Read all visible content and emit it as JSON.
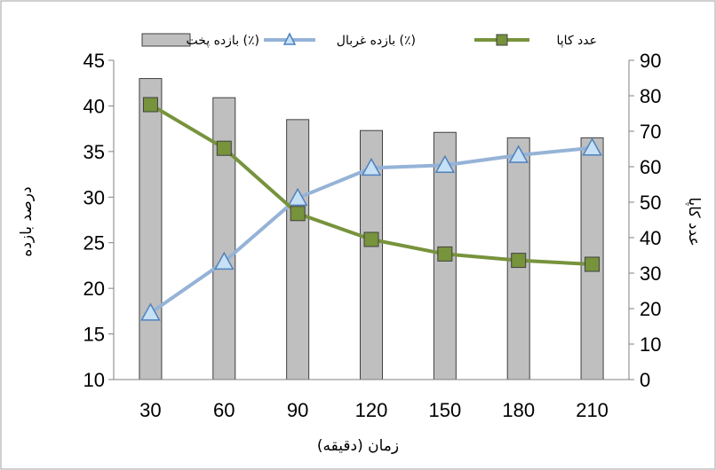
{
  "chart_data": {
    "type": "bar",
    "title": "",
    "xlabel": "زمان (دقیقه)",
    "ylabel_left": "درصد بازده",
    "ylabel_right": "عدد کاپا",
    "categories": [
      "30",
      "60",
      "90",
      "120",
      "150",
      "180",
      "210"
    ],
    "ylim_left": [
      10,
      45
    ],
    "yticks_left": [
      "10",
      "15",
      "20",
      "25",
      "30",
      "35",
      "40",
      "45"
    ],
    "ylim_right": [
      0,
      90
    ],
    "yticks_right": [
      "0",
      "10",
      "20",
      "30",
      "40",
      "50",
      "60",
      "70",
      "80",
      "90"
    ],
    "grid": false,
    "legend_position": "top",
    "series": [
      {
        "name": "بازده پخت (٪)",
        "type": "bar",
        "axis": "left",
        "color": "#bfbfbf",
        "values": [
          43.0,
          40.9,
          38.5,
          37.3,
          37.1,
          36.5,
          36.5
        ]
      },
      {
        "name": "بازده غربال (٪)",
        "type": "line",
        "axis": "left",
        "marker": "triangle",
        "color": "#95b3d7",
        "values": [
          17.3,
          22.9,
          29.9,
          33.2,
          33.5,
          34.6,
          35.4
        ]
      },
      {
        "name": "عدد کاپا",
        "type": "line",
        "axis": "right",
        "marker": "square",
        "color": "#77933c",
        "values": [
          77.5,
          65.2,
          46.8,
          39.5,
          35.4,
          33.6,
          32.5
        ]
      }
    ]
  }
}
